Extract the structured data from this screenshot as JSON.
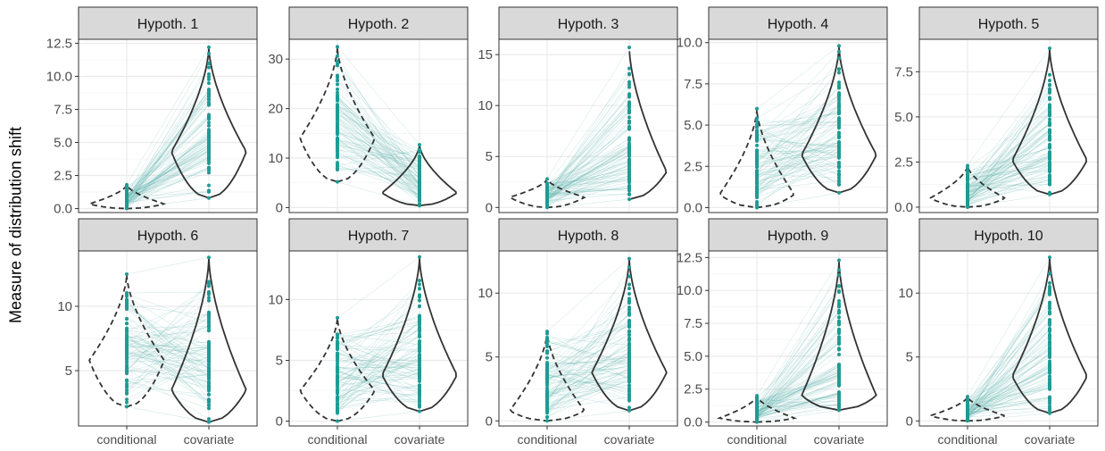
{
  "chart_data": {
    "type": "violin",
    "ylabel": "Measure of distribution shift",
    "categories": [
      "conditional",
      "covariate"
    ],
    "colors": {
      "points": "#1f9a94",
      "lines": "#5fb3ab",
      "outline": "#333333",
      "strip": "#d9d9d9",
      "grid": "#ebebeb"
    },
    "line_styles": {
      "conditional": "dashed",
      "covariate": "solid"
    },
    "panels": [
      {
        "title": "Hypoth. 1",
        "ylim": [
          -0.3,
          12.8
        ],
        "yticks": [
          0.0,
          2.5,
          5.0,
          7.5,
          10.0,
          12.5
        ],
        "tick_decimals": 1,
        "conditional": {
          "min": 0.0,
          "max": 1.8,
          "mode": 0.35
        },
        "covariate": {
          "min": 0.8,
          "max": 12.2,
          "mode": 4.3
        }
      },
      {
        "title": "Hypoth. 2",
        "ylim": [
          -1.0,
          34.0
        ],
        "yticks": [
          0,
          10,
          20,
          30
        ],
        "tick_decimals": 0,
        "conditional": {
          "min": 5.2,
          "max": 32.5,
          "mode": 14.0
        },
        "covariate": {
          "min": 0.4,
          "max": 12.7,
          "mode": 3.0
        }
      },
      {
        "title": "Hypoth. 3",
        "ylim": [
          -0.5,
          16.5
        ],
        "yticks": [
          0,
          5,
          10,
          15
        ],
        "tick_decimals": 0,
        "conditional": {
          "min": 0.0,
          "max": 2.8,
          "mode": 1.0
        },
        "covariate": {
          "min": 0.8,
          "max": 15.7,
          "mode": 3.5
        }
      },
      {
        "title": "Hypoth. 4",
        "ylim": [
          -0.3,
          10.2
        ],
        "yticks": [
          0.0,
          2.5,
          5.0,
          7.5,
          10.0
        ],
        "tick_decimals": 1,
        "conditional": {
          "min": 0.0,
          "max": 6.0,
          "mode": 0.8
        },
        "covariate": {
          "min": 0.9,
          "max": 9.8,
          "mode": 3.2
        }
      },
      {
        "title": "Hypoth. 5",
        "ylim": [
          -0.3,
          9.3
        ],
        "yticks": [
          0.0,
          2.5,
          5.0,
          7.5
        ],
        "tick_decimals": 1,
        "conditional": {
          "min": 0.0,
          "max": 2.3,
          "mode": 0.5
        },
        "covariate": {
          "min": 0.7,
          "max": 8.8,
          "mode": 2.6
        }
      },
      {
        "title": "Hypoth. 6",
        "ylim": [
          0.7,
          14.3
        ],
        "yticks": [
          5,
          10
        ],
        "tick_decimals": 0,
        "conditional": {
          "min": 2.2,
          "max": 12.5,
          "mode": 5.8
        },
        "covariate": {
          "min": 1.0,
          "max": 13.8,
          "mode": 3.5
        }
      },
      {
        "title": "Hypoth. 7",
        "ylim": [
          -0.4,
          14.0
        ],
        "yticks": [
          0,
          5,
          10
        ],
        "tick_decimals": 0,
        "conditional": {
          "min": 0.0,
          "max": 8.5,
          "mode": 2.5
        },
        "covariate": {
          "min": 0.8,
          "max": 13.5,
          "mode": 3.8
        }
      },
      {
        "title": "Hypoth. 8",
        "ylim": [
          -0.4,
          13.3
        ],
        "yticks": [
          0,
          5,
          10
        ],
        "tick_decimals": 0,
        "conditional": {
          "min": 0.0,
          "max": 7.0,
          "mode": 0.8
        },
        "covariate": {
          "min": 0.8,
          "max": 12.7,
          "mode": 3.8
        }
      },
      {
        "title": "Hypoth. 9",
        "ylim": [
          -0.3,
          13.0
        ],
        "yticks": [
          0.0,
          2.5,
          5.0,
          7.5,
          10.0,
          12.5
        ],
        "tick_decimals": 1,
        "conditional": {
          "min": 0.0,
          "max": 2.0,
          "mode": 0.3
        },
        "covariate": {
          "min": 0.9,
          "max": 12.3,
          "mode": 2.0
        }
      },
      {
        "title": "Hypoth. 10",
        "ylim": [
          -0.4,
          13.3
        ],
        "yticks": [
          0,
          5,
          10
        ],
        "tick_decimals": 0,
        "conditional": {
          "min": 0.0,
          "max": 1.9,
          "mode": 0.4
        },
        "covariate": {
          "min": 0.6,
          "max": 12.8,
          "mode": 3.5
        }
      }
    ]
  }
}
